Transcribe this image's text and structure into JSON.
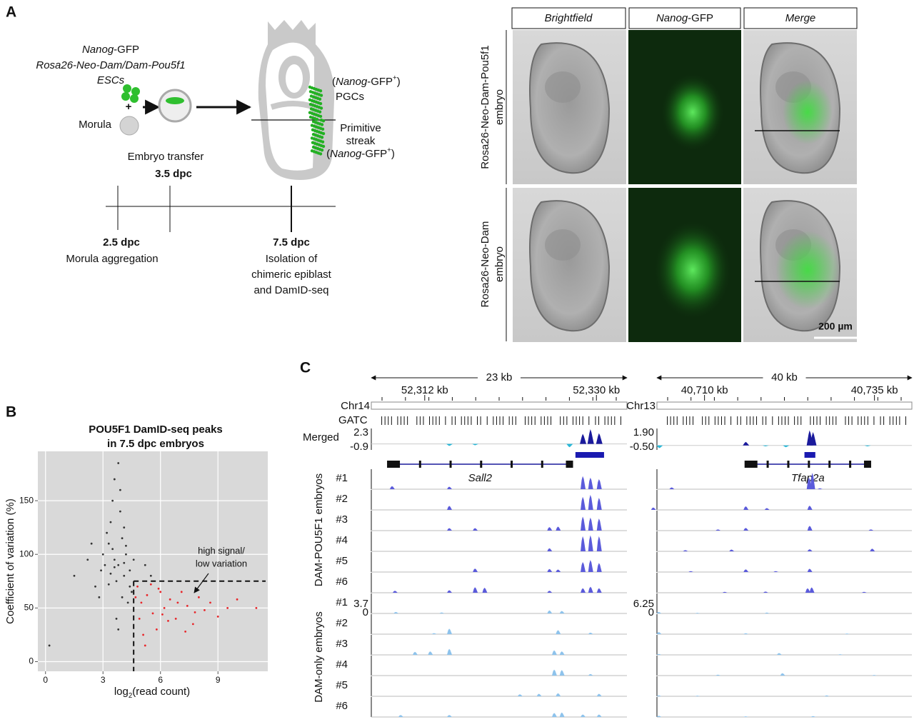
{
  "panel_labels": [
    "A",
    "B",
    "C"
  ],
  "panel_a": {
    "esc_lines": [
      [
        "Nanog",
        "-GFP"
      ],
      [
        "Rosa26-Neo-Dam/Dam-Pou5f1"
      ],
      [
        "ESCs"
      ]
    ],
    "plus": "+",
    "morula": "Morula",
    "pgc_lines": [
      [
        "(",
        "Nanog",
        "-GFP",
        "+",
        ")"
      ],
      [
        "PGCs"
      ]
    ],
    "streak_lines": [
      [
        "Primitive"
      ],
      [
        "streak"
      ],
      [
        "(",
        "Nanog",
        "-GFP",
        "+",
        ")"
      ]
    ],
    "transfer": [
      "Embryo transfer",
      "3.5 dpc"
    ],
    "timeline": [
      {
        "day": "2.5 dpc",
        "lines": [
          "Morula aggregation"
        ]
      },
      {
        "day": "7.5 dpc",
        "lines": [
          "Isolation of",
          "chimeric epiblast",
          "and DamID-seq"
        ]
      }
    ],
    "columns": [
      [
        "Brightfield"
      ],
      [
        "Nanog",
        "-GFP"
      ],
      [
        "Merge"
      ]
    ],
    "rows": [
      [
        "Rosa26-Neo-Dam-Pou5f1",
        "embryo"
      ],
      [
        "Rosa26-Neo-Dam",
        "embryo"
      ]
    ],
    "scale_bar": "200 µm"
  },
  "chart_data": {
    "type": "scatter",
    "title": [
      "POU5F1 DamID-seq peaks",
      "in 7.5 dpc embryos"
    ],
    "xlabel": [
      "log",
      "2",
      "(read count)"
    ],
    "ylabel": "Coefficient of variation (%)",
    "xlim": [
      -0.4,
      11.6
    ],
    "ylim": [
      -9,
      196
    ],
    "xticks": [
      0,
      3,
      6,
      9
    ],
    "yticks": [
      0,
      50,
      100,
      150
    ],
    "grid": true,
    "series": [
      {
        "color": "#333333",
        "x": [
          3.8,
          3.5,
          4.1,
          3.2,
          4.4,
          3.9,
          3.6,
          4.0,
          2.9,
          3.3,
          4.2,
          3.7,
          3.4,
          4.5,
          3.1,
          3.9,
          4.3,
          2.6,
          3.8,
          3.5,
          4.0,
          3.6,
          2.2,
          4.1,
          3.7,
          3.0,
          4.4,
          3.3,
          2.8,
          4.2,
          3.6,
          1.5,
          5.2,
          3.4,
          4.6,
          0.2,
          4.1,
          2.4,
          5.5,
          3.8
        ],
        "y": [
          90,
          105,
          80,
          120,
          70,
          140,
          95,
          60,
          85,
          110,
          100,
          75,
          130,
          65,
          90,
          160,
          55,
          70,
          185,
          150,
          115,
          88,
          95,
          125,
          40,
          100,
          85,
          72,
          60,
          108,
          170,
          80,
          90,
          82,
          95,
          15,
          92,
          110,
          80,
          30
        ]
      },
      {
        "color": "#e8262a",
        "x": [
          4.8,
          5.0,
          5.3,
          5.6,
          5.9,
          6.2,
          6.5,
          6.8,
          7.1,
          7.4,
          7.7,
          8.0,
          8.3,
          8.6,
          9.0,
          9.5,
          10.0,
          11.0,
          4.9,
          5.1,
          5.5,
          5.8,
          6.0,
          6.4,
          6.9,
          7.3,
          7.8,
          5.2,
          6.1,
          4.7
        ],
        "y": [
          70,
          55,
          62,
          45,
          68,
          50,
          58,
          40,
          65,
          52,
          35,
          60,
          48,
          55,
          42,
          50,
          58,
          50,
          40,
          25,
          72,
          30,
          65,
          38,
          55,
          28,
          46,
          15,
          44,
          60
        ]
      }
    ],
    "thresholds": {
      "x": 4.6,
      "y": 75
    },
    "annotation": [
      "high signal/",
      "low variation"
    ]
  },
  "panel_c": {
    "gatc_label": "GATC",
    "merged_label": "Merged",
    "loci": [
      {
        "chrom": "Chr14",
        "span_label": "23 kb",
        "range": [
          52306.4,
          52333.2
        ],
        "ticks": [
          {
            "value": 52312,
            "label": "52,312 kb"
          },
          {
            "value": 52330,
            "label": "52,330 kb"
          }
        ],
        "gene": {
          "name": "Sall2",
          "start": 52308.2,
          "end": 52327.4
        },
        "peak_call": [
          52327.8,
          52330.8
        ],
        "merged_scale": [
          2.3,
          -0.9
        ],
        "merged_peaks": [
          [
            52314.6,
            -0.3
          ],
          [
            52317.3,
            -0.2
          ],
          [
            52327.2,
            -0.5
          ],
          [
            52328.6,
            1.5
          ],
          [
            52329.4,
            2.2
          ],
          [
            52330.3,
            1.6
          ]
        ],
        "track_scale": [
          3.7,
          0
        ]
      },
      {
        "chrom": "Chr13",
        "span_label": "40 kb",
        "range": [
          40703.0,
          40740.5
        ],
        "ticks": [
          {
            "value": 40710,
            "label": "40,710 kb"
          },
          {
            "value": 40735,
            "label": "40,735 kb"
          }
        ],
        "gene": {
          "name": "Tfap2a",
          "start": 40716.1,
          "end": 40734.3
        },
        "peak_call": [
          40724.7,
          40726.3
        ],
        "merged_scale": [
          {
            "value": 1.9,
            "label": "1.90"
          },
          {
            "value": -0.5,
            "label": "-0.50"
          }
        ],
        "merged_peaks": [
          [
            40703.4,
            -0.3
          ],
          [
            40716.1,
            0.4
          ],
          [
            40719.0,
            -0.1
          ],
          [
            40722.0,
            -0.2
          ],
          [
            40725.5,
            1.7
          ],
          [
            40726.0,
            1.5
          ],
          [
            40734.0,
            -0.1
          ]
        ],
        "track_scale": [
          {
            "value": 6.25,
            "label": "6.25"
          },
          0
        ]
      }
    ],
    "groups": [
      {
        "label": "DAM-POU5F1 embryos",
        "color": "#5b5bdb",
        "tracks": [
          {
            "name": "#1",
            "peaks": [
              [
                [
                  52308.6,
                  0.6
                ],
                [
                  52314.6,
                  0.5
                ],
                [
                  52328.6,
                  2.6
                ],
                [
                  52329.4,
                  2.3
                ],
                [
                  52330.3,
                  2.0
                ]
              ],
              [
                [
                  40705.2,
                  0.6
                ],
                [
                  40725.4,
                  4.0
                ],
                [
                  40725.9,
                  5.5
                ],
                [
                  40727.0,
                  0.3
                ]
              ]
            ]
          },
          {
            "name": "#2",
            "peaks": [
              [
                [
                  52314.6,
                  0.8
                ],
                [
                  52328.6,
                  2.6
                ],
                [
                  52329.4,
                  3.0
                ],
                [
                  52330.3,
                  2.4
                ]
              ],
              [
                [
                  40702.5,
                  0.8
                ],
                [
                  40716.1,
                  1.2
                ],
                [
                  40719.2,
                  0.6
                ],
                [
                  40725.5,
                  1.4
                ]
              ]
            ]
          },
          {
            "name": "#3",
            "peaks": [
              [
                [
                  52314.6,
                  0.5
                ],
                [
                  52317.3,
                  0.5
                ],
                [
                  52325.1,
                  0.7
                ],
                [
                  52326.0,
                  0.8
                ],
                [
                  52328.6,
                  2.8
                ],
                [
                  52329.4,
                  2.6
                ],
                [
                  52330.3,
                  2.4
                ]
              ],
              [
                [
                  40712.0,
                  0.4
                ],
                [
                  40716.1,
                  0.9
                ],
                [
                  40725.5,
                  1.6
                ],
                [
                  40734.5,
                  0.4
                ]
              ]
            ]
          },
          {
            "name": "#4",
            "peaks": [
              [
                [
                  52325.1,
                  0.6
                ],
                [
                  52328.6,
                  3.0
                ],
                [
                  52329.4,
                  3.2
                ],
                [
                  52330.3,
                  3.0
                ]
              ],
              [
                [
                  40707.2,
                  0.4
                ],
                [
                  40714.0,
                  0.6
                ],
                [
                  40725.5,
                  0.7
                ],
                [
                  40734.7,
                  0.9
                ]
              ]
            ]
          },
          {
            "name": "#5",
            "peaks": [
              [
                [
                  52317.3,
                  0.7
                ],
                [
                  52325.1,
                  0.6
                ],
                [
                  52326.0,
                  0.5
                ],
                [
                  52328.6,
                  2.0
                ],
                [
                  52329.4,
                  2.4
                ],
                [
                  52330.3,
                  1.8
                ]
              ],
              [
                [
                  40708.0,
                  0.3
                ],
                [
                  40716.1,
                  0.9
                ],
                [
                  40720.5,
                  0.3
                ],
                [
                  40725.5,
                  1.1
                ]
              ]
            ]
          },
          {
            "name": "#6",
            "peaks": [
              [
                [
                  52308.9,
                  0.4
                ],
                [
                  52314.6,
                  0.5
                ],
                [
                  52317.3,
                  1.1
                ],
                [
                  52318.3,
                  1.0
                ],
                [
                  52325.1,
                  0.4
                ],
                [
                  52328.6,
                  0.9
                ],
                [
                  52329.4,
                  1.2
                ],
                [
                  52330.3,
                  0.9
                ]
              ],
              [
                [
                  40713.0,
                  0.3
                ],
                [
                  40719.0,
                  0.4
                ],
                [
                  40725.2,
                  1.5
                ],
                [
                  40725.8,
                  1.8
                ],
                [
                  40733.5,
                  0.3
                ]
              ]
            ]
          }
        ]
      },
      {
        "label": "DAM-only embryos",
        "color": "#8ec3ec",
        "tracks": [
          {
            "name": "#1",
            "peaks": [
              [
                [
                  52309.0,
                  0.3
                ],
                [
                  52313.8,
                  0.2
                ],
                [
                  52325.1,
                  0.6
                ],
                [
                  52326.4,
                  0.5
                ]
              ],
              [
                [
                  40703.3,
                  0.5
                ],
                [
                  40709.0,
                  0.2
                ],
                [
                  40719.2,
                  0.3
                ]
              ]
            ]
          },
          {
            "name": "#2",
            "peaks": [
              [
                [
                  52313.0,
                  0.2
                ],
                [
                  52314.6,
                  1.1
                ],
                [
                  52326.0,
                  0.8
                ],
                [
                  52329.4,
                  0.3
                ]
              ],
              [
                [
                  40703.3,
                  0.7
                ],
                [
                  40716.1,
                  0.3
                ],
                [
                  40731.0,
                  0.2
                ]
              ]
            ]
          },
          {
            "name": "#3",
            "peaks": [
              [
                [
                  52311.0,
                  0.6
                ],
                [
                  52312.6,
                  0.7
                ],
                [
                  52314.6,
                  1.2
                ],
                [
                  52325.6,
                  0.9
                ],
                [
                  52326.4,
                  0.7
                ]
              ],
              [
                [
                  40703.3,
                  0.3
                ],
                [
                  40721.0,
                  0.6
                ],
                [
                  40730.0,
                  0.2
                ]
              ]
            ]
          },
          {
            "name": "#4",
            "peaks": [
              [
                [
                  52325.6,
                  1.2
                ],
                [
                  52326.4,
                  1.1
                ],
                [
                  52329.4,
                  0.3
                ]
              ],
              [
                [
                  40712.0,
                  0.3
                ],
                [
                  40721.5,
                  0.8
                ],
                [
                  40735.0,
                  0.2
                ]
              ]
            ]
          },
          {
            "name": "#5",
            "peaks": [
              [
                [
                  52322.0,
                  0.4
                ],
                [
                  52324.0,
                  0.5
                ],
                [
                  52326.0,
                  0.6
                ],
                [
                  52330.3,
                  0.5
                ]
              ],
              [
                [
                  40703.3,
                  0.3
                ],
                [
                  40709.0,
                  0.2
                ],
                [
                  40728.0,
                  0.3
                ]
              ]
            ]
          },
          {
            "name": "#6",
            "peaks": [
              [
                [
                  52309.5,
                  0.4
                ],
                [
                  52314.6,
                  0.4
                ],
                [
                  52325.6,
                  0.8
                ],
                [
                  52326.4,
                  0.9
                ],
                [
                  52328.6,
                  0.5
                ],
                [
                  52330.3,
                  0.5
                ]
              ],
              [
                [
                  40703.3,
                  0.4
                ],
                [
                  40716.1,
                  0.2
                ],
                [
                  40726.0,
                  0.3
                ]
              ]
            ]
          }
        ]
      }
    ]
  }
}
